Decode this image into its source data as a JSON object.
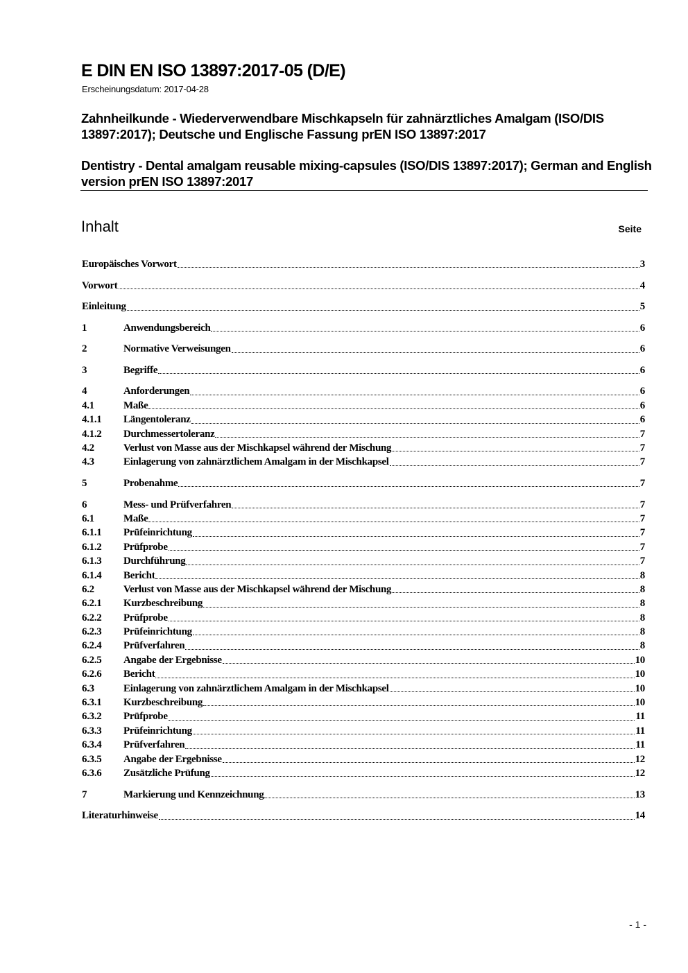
{
  "header": {
    "document_id": "E DIN EN ISO 13897:2017-05 (D/E)",
    "publication_date": "Erscheinungsdatum: 2017-04-28",
    "title_de": "Zahnheilkunde - Wiederverwendbare Mischkapseln für zahnärztliches Amalgam (ISO/DIS 13897:2017); Deutsche und Englische Fassung prEN ISO 13897:2017",
    "title_en": "Dentistry - Dental amalgam reusable mixing-capsules (ISO/DIS 13897:2017); German and English version prEN ISO 13897:2017"
  },
  "toc_heading": "Inhalt",
  "toc_page_label": "Seite",
  "toc": [
    {
      "number": "",
      "title": "Europäisches Vorwort",
      "page": "3"
    },
    {
      "number": "",
      "title": "Vorwort",
      "page": "4"
    },
    {
      "number": "",
      "title": "Einleitung",
      "page": "5"
    },
    {
      "number": "1",
      "title": "Anwendungsbereich",
      "page": "6"
    },
    {
      "number": "2",
      "title": "Normative Verweisungen",
      "page": "6"
    },
    {
      "number": "3",
      "title": "Begriffe",
      "page": "6"
    },
    {
      "number": "4",
      "title": "Anforderungen",
      "page": "6"
    },
    {
      "number": "4.1",
      "title": "Maße",
      "page": "6"
    },
    {
      "number": "4.1.1",
      "title": "Längentoleranz",
      "page": "6"
    },
    {
      "number": "4.1.2",
      "title": "Durchmessertoleranz",
      "page": "7"
    },
    {
      "number": "4.2",
      "title": "Verlust von Masse aus der Mischkapsel während der Mischung",
      "page": "7"
    },
    {
      "number": "4.3",
      "title": "Einlagerung von zahnärztlichem Amalgam in der Mischkapsel",
      "page": "7"
    },
    {
      "number": "5",
      "title": "Probenahme",
      "page": "7"
    },
    {
      "number": "6",
      "title": "Mess- und Prüfverfahren",
      "page": "7"
    },
    {
      "number": "6.1",
      "title": "Maße",
      "page": "7"
    },
    {
      "number": "6.1.1",
      "title": "Prüfeinrichtung",
      "page": "7"
    },
    {
      "number": "6.1.2",
      "title": "Prüfprobe",
      "page": "7"
    },
    {
      "number": "6.1.3",
      "title": "Durchführung",
      "page": "7"
    },
    {
      "number": "6.1.4",
      "title": "Bericht",
      "page": "8"
    },
    {
      "number": "6.2",
      "title": "Verlust von Masse aus der Mischkapsel während der Mischung",
      "page": "8"
    },
    {
      "number": "6.2.1",
      "title": "Kurzbeschreibung",
      "page": "8"
    },
    {
      "number": "6.2.2",
      "title": "Prüfprobe",
      "page": "8"
    },
    {
      "number": "6.2.3",
      "title": "Prüfeinrichtung",
      "page": "8"
    },
    {
      "number": "6.2.4",
      "title": "Prüfverfahren",
      "page": "8"
    },
    {
      "number": "6.2.5",
      "title": "Angabe der Ergebnisse",
      "page": "10"
    },
    {
      "number": "6.2.6",
      "title": "Bericht",
      "page": "10"
    },
    {
      "number": "6.3",
      "title": "Einlagerung von zahnärztlichem Amalgam in der Mischkapsel",
      "page": "10"
    },
    {
      "number": "6.3.1",
      "title": "Kurzbeschreibung",
      "page": "10"
    },
    {
      "number": "6.3.2",
      "title": "Prüfprobe",
      "page": "11"
    },
    {
      "number": "6.3.3",
      "title": "Prüfeinrichtung",
      "page": "11"
    },
    {
      "number": "6.3.4",
      "title": "Prüfverfahren",
      "page": "11"
    },
    {
      "number": "6.3.5",
      "title": "Angabe der Ergebnisse",
      "page": "12"
    },
    {
      "number": "6.3.6",
      "title": "Zusätzliche Prüfung",
      "page": "12"
    },
    {
      "number": "7",
      "title": "Markierung und Kennzeichnung",
      "page": "13"
    },
    {
      "number": "",
      "title": "Literaturhinweise",
      "page": "14"
    }
  ],
  "footer": {
    "page_number": "- 1 -"
  }
}
